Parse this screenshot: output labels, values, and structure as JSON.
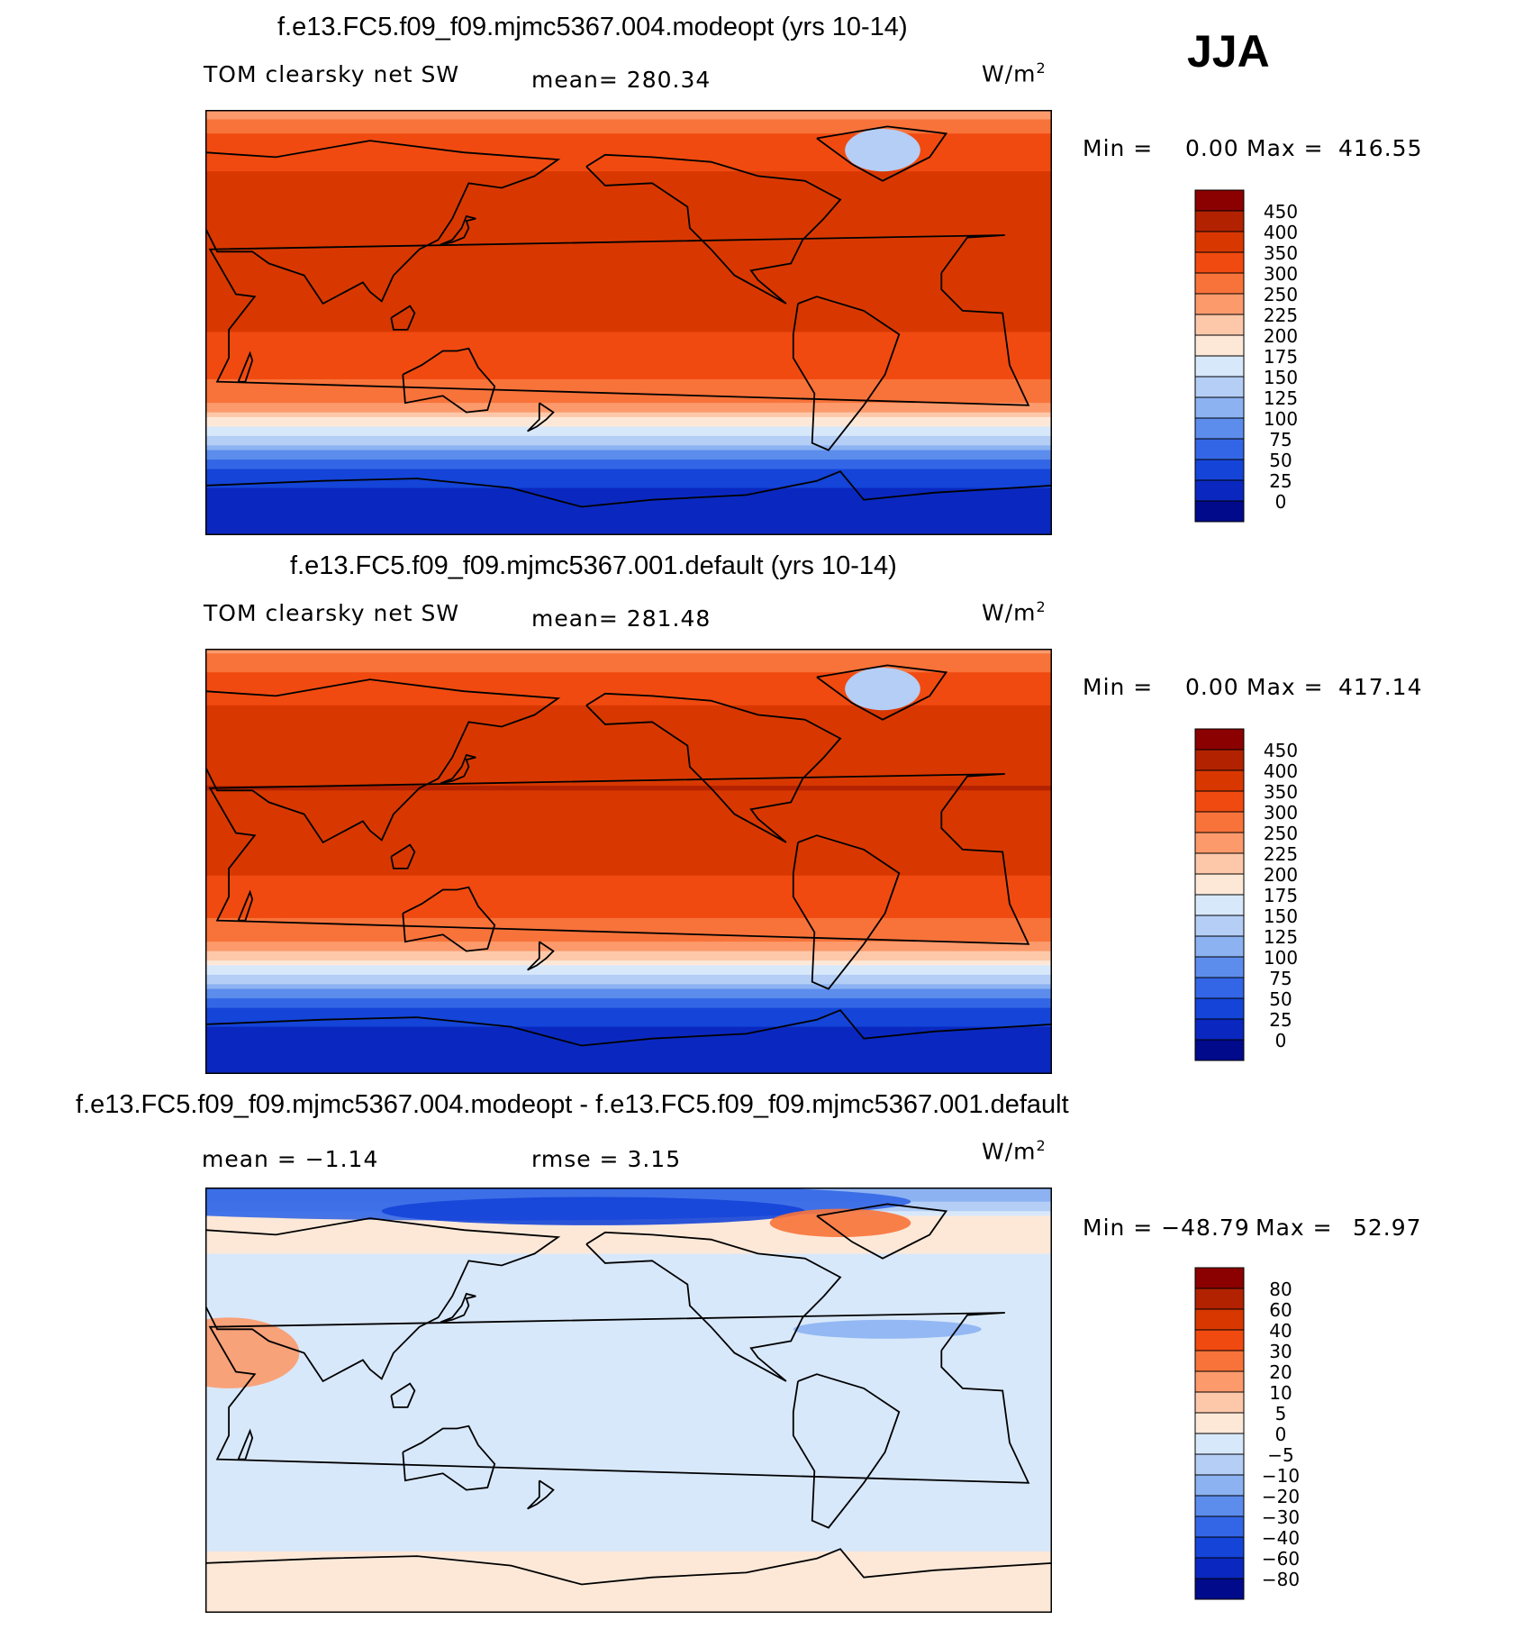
{
  "season": "JJA",
  "panels": [
    {
      "title": "f.e13.FC5.f09_f09.mjmc5367.004.modeopt (yrs 10-14)",
      "left_label": "TOM clearsky net SW",
      "center_label": "mean= 280.34",
      "center_label2": "",
      "units": "W/m2",
      "minmax_min_label": "Min =",
      "minmax_min_value": "0.00",
      "minmax_max_label": "Max =",
      "minmax_max_value": "416.55",
      "kind": "field"
    },
    {
      "title": "f.e13.FC5.f09_f09.mjmc5367.001.default (yrs 10-14)",
      "left_label": "TOM clearsky net SW",
      "center_label": "mean= 281.48",
      "center_label2": "",
      "units": "W/m2",
      "minmax_min_label": "Min =",
      "minmax_min_value": "0.00",
      "minmax_max_label": "Max =",
      "minmax_max_value": "417.14",
      "kind": "field"
    },
    {
      "title": "f.e13.FC5.f09_f09.mjmc5367.004.modeopt - f.e13.FC5.f09_f09.mjmc5367.001.default",
      "left_label": "mean =   −1.14",
      "center_label": "rmse =    3.15",
      "center_label2": "",
      "units": "W/m2",
      "minmax_min_label": "Min = −48.79",
      "minmax_min_value": "",
      "minmax_max_label": "Max =",
      "minmax_max_value": "52.97",
      "kind": "diff"
    }
  ],
  "chart_data": [
    {
      "type": "heatmap",
      "title": "f.e13.FC5.f09_f09.mjmc5367.004.modeopt (yrs 10-14)",
      "variable": "TOM clearsky net SW",
      "units": "W/m2",
      "mean": 280.34,
      "min": 0.0,
      "max": 416.55,
      "colorbar_levels": [
        "450",
        "400",
        "350",
        "300",
        "250",
        "225",
        "200",
        "175",
        "150",
        "125",
        "100",
        "75",
        "50",
        "25",
        "0"
      ],
      "colorbar_colors": [
        "#8b0000",
        "#b22200",
        "#d83800",
        "#f04a10",
        "#f8733a",
        "#fc9a6c",
        "#fdc8aa",
        "#fde8d8",
        "#d8e8fb",
        "#b4cef6",
        "#8cb2f2",
        "#5c8cec",
        "#3366e6",
        "#1444d8",
        "#0a28c0",
        "#000a8a"
      ],
      "zonal_mean_lat": [
        90,
        75,
        60,
        45,
        30,
        15,
        0,
        -15,
        -30,
        -45,
        -60,
        -75,
        -90
      ],
      "zonal_mean_value": [
        230,
        330,
        360,
        395,
        400,
        385,
        360,
        330,
        280,
        170,
        60,
        10,
        0
      ]
    },
    {
      "type": "heatmap",
      "title": "f.e13.FC5.f09_f09.mjmc5367.001.default (yrs 10-14)",
      "variable": "TOM clearsky net SW",
      "units": "W/m2",
      "mean": 281.48,
      "min": 0.0,
      "max": 417.14,
      "colorbar_levels": [
        "450",
        "400",
        "350",
        "300",
        "250",
        "225",
        "200",
        "175",
        "150",
        "125",
        "100",
        "75",
        "50",
        "25",
        "0"
      ],
      "colorbar_colors": [
        "#8b0000",
        "#b22200",
        "#d83800",
        "#f04a10",
        "#f8733a",
        "#fc9a6c",
        "#fdc8aa",
        "#fde8d8",
        "#d8e8fb",
        "#b4cef6",
        "#8cb2f2",
        "#5c8cec",
        "#3366e6",
        "#1444d8",
        "#0a28c0",
        "#000a8a"
      ],
      "zonal_mean_lat": [
        90,
        75,
        60,
        45,
        30,
        15,
        0,
        -15,
        -30,
        -45,
        -60,
        -75,
        -90
      ],
      "zonal_mean_value": [
        240,
        335,
        362,
        396,
        401,
        386,
        361,
        331,
        281,
        171,
        60,
        10,
        0
      ]
    },
    {
      "type": "heatmap",
      "title": "f.e13.FC5.f09_f09.mjmc5367.004.modeopt - f.e13.FC5.f09_f09.mjmc5367.001.default",
      "variable": "difference",
      "units": "W/m2",
      "mean": -1.14,
      "rmse": 3.15,
      "min": -48.79,
      "max": 52.97,
      "colorbar_levels": [
        "80",
        "60",
        "40",
        "30",
        "20",
        "10",
        "5",
        "0",
        "−5",
        "−10",
        "−20",
        "−30",
        "−40",
        "−60",
        "−80"
      ],
      "colorbar_colors": [
        "#8b0000",
        "#b22200",
        "#d83800",
        "#f04a10",
        "#f8733a",
        "#fc9a6c",
        "#fdc8aa",
        "#fde8d8",
        "#d8e8fb",
        "#b4cef6",
        "#8cb2f2",
        "#5c8cec",
        "#3366e6",
        "#1444d8",
        "#0a28c0",
        "#000a8a"
      ],
      "zonal_mean_lat": [
        90,
        75,
        60,
        45,
        30,
        15,
        0,
        -15,
        -30,
        -45,
        -60,
        -75,
        -90
      ],
      "zonal_mean_value": [
        -20,
        5,
        -1,
        -2,
        -1,
        0,
        -1,
        -1,
        0,
        -1,
        -1,
        3,
        2
      ]
    }
  ]
}
